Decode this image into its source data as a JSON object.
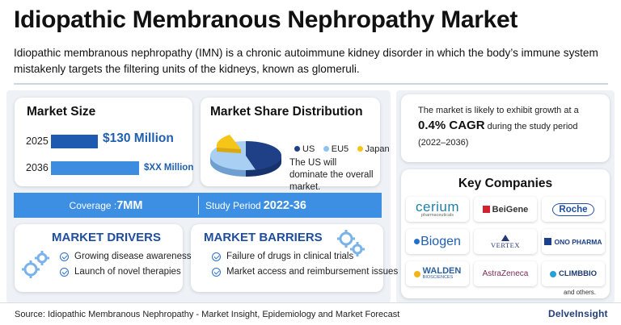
{
  "header": {
    "title": "Idiopathic Membranous Nephropathy Market",
    "description": "Idiopathic membranous nephropathy (IMN) is a chronic autoimmune kidney disorder in which the body’s immune system mistakenly targets the filtering units of the kidneys, known as glomeruli."
  },
  "market_size": {
    "heading": "Market Size",
    "rows": [
      {
        "year": "2025",
        "value": "$130 Million"
      },
      {
        "year": "2036",
        "value": "$XX Million"
      }
    ]
  },
  "market_share": {
    "heading": "Market Share Distribution",
    "legend": [
      {
        "label": "US",
        "color": "#1f3f86"
      },
      {
        "label": "EU5",
        "color": "#8fc3ef"
      },
      {
        "label": "Japan",
        "color": "#f5c518"
      }
    ],
    "note": "The US will dominate the overall market."
  },
  "growth": {
    "line1": "The market is likely to exhibit growth at a",
    "cagr": "0.4% CAGR",
    "line2": " during the study period",
    "period": "(2022–2036)"
  },
  "coverage": {
    "coverage_label": "Coverage : ",
    "coverage_value": "7MM",
    "study_label": "Study Period ",
    "study_value": "2022-36"
  },
  "drivers": {
    "heading": "MARKET DRIVERS",
    "items": [
      "Growing disease awareness",
      "Launch of novel therapies"
    ]
  },
  "barriers": {
    "heading": "MARKET BARRIERS",
    "items": [
      "Failure of drugs in clinical trials",
      "Market access and reimbursement issues"
    ]
  },
  "companies": {
    "heading": "Key Companies",
    "logos": [
      "cerium",
      "pharmaceuticals",
      "BeiGene",
      "Roche",
      "Biogen",
      "VERTEX",
      "ONO PHARMA",
      "WALDEN",
      "BIOSCIENCES",
      "AstraZeneca",
      "CLIMBBIO"
    ],
    "and_others": "and others."
  },
  "footer": {
    "source": "Source: Idiopathic Membranous Nephropathy - Market Insight, Epidemiology and Market Forecast",
    "brand": "DelveInsight"
  },
  "colors": {
    "accent_blue": "#3d8fe3",
    "dark_blue": "#1e5bb0",
    "heading_blue": "#1f4ea0",
    "panel_bg": "#eef2f7"
  }
}
